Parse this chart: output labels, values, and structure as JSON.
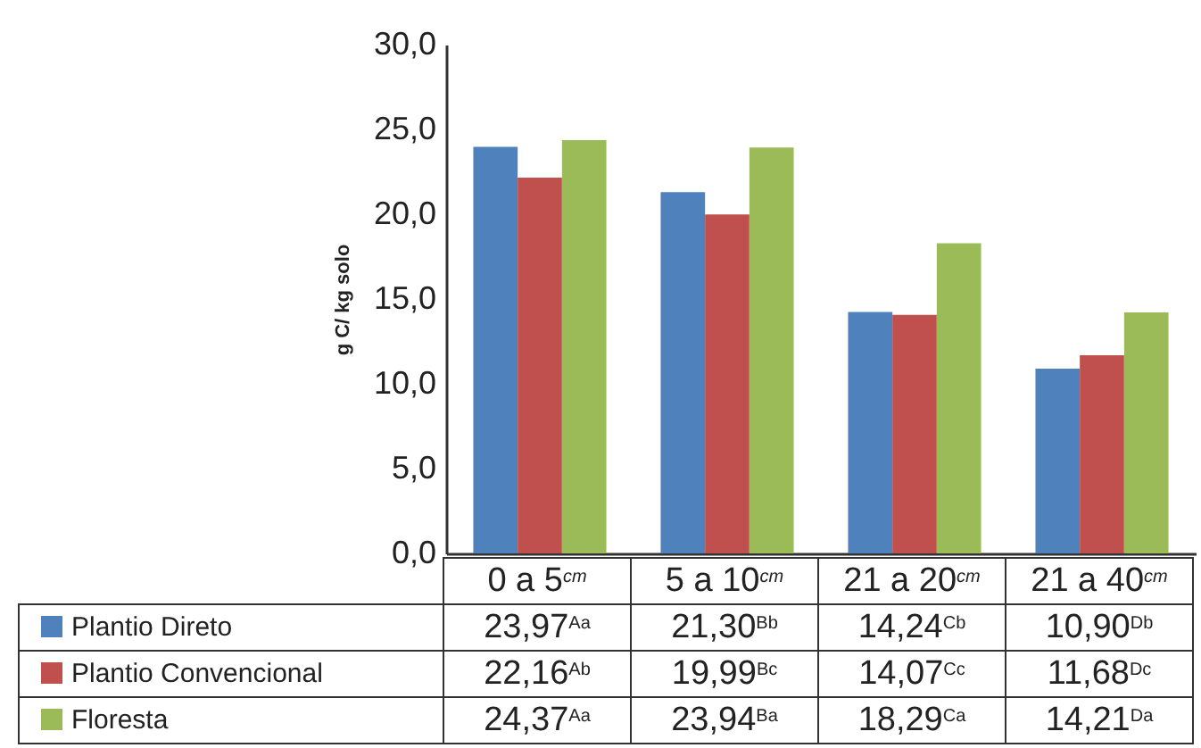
{
  "chart_data": {
    "type": "bar",
    "ylabel": "g C/ kg solo",
    "categories": [
      "0 a 5$^{cm}$",
      "5 a 10$^{cm}$",
      "21 a 20$^{cm}$",
      "21 a 40$^{cm}$"
    ],
    "series": [
      {
        "name": "Plantio Direto",
        "color": "#4f81bd",
        "values": [
          23.97,
          21.3,
          14.24,
          10.9
        ],
        "value_labels": [
          "23,97$^{Aa}$",
          "21,30$^{Bb}$",
          "14,24$^{Cb}$",
          "10,90$^{Db}$"
        ]
      },
      {
        "name": "Plantio Convencional",
        "color": "#c0504d",
        "values": [
          22.16,
          19.99,
          14.07,
          11.68
        ],
        "value_labels": [
          "22,16$^{Ab}$",
          "19,99$^{Bc}$",
          "14,07$^{Cc}$",
          "11,68$^{Dc}$"
        ]
      },
      {
        "name": "Floresta",
        "color": "#9bbb59",
        "values": [
          24.37,
          23.94,
          18.29,
          14.21
        ],
        "value_labels": [
          "24,37$^{Aa}$",
          "23,94$^{Ba}$",
          "18,29$^{Ca}$",
          "14,21$^{Da}$"
        ]
      }
    ],
    "ylim": [
      0,
      30
    ],
    "yticks": [
      {
        "value": 0,
        "label": "0,0"
      },
      {
        "value": 5,
        "label": "5,0"
      },
      {
        "value": 10,
        "label": "10,0"
      },
      {
        "value": 15,
        "label": "15,0"
      },
      {
        "value": 20,
        "label": "20,0"
      },
      {
        "value": 25,
        "label": "25,0"
      },
      {
        "value": 30,
        "label": "30,0"
      }
    ],
    "grid": false,
    "legend": "bottom"
  }
}
